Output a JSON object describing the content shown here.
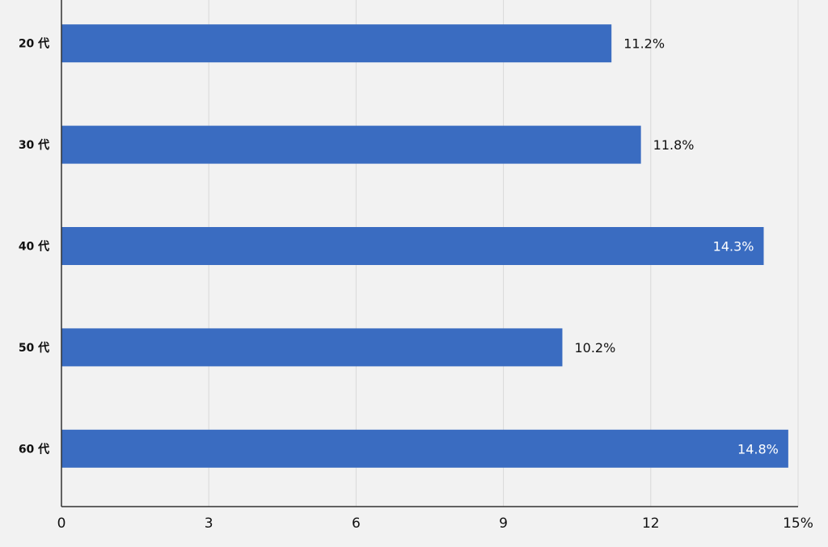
{
  "chart_data": {
    "type": "bar",
    "orientation": "horizontal",
    "categories": [
      "20 代",
      "30 代",
      "40 代",
      "50 代",
      "60 代"
    ],
    "values": [
      11.2,
      11.8,
      14.3,
      10.2,
      14.8
    ],
    "data_labels": [
      "11.2%",
      "11.8%",
      "14.3%",
      "10.2%",
      "14.8%"
    ],
    "x_ticks": [
      "0",
      "3",
      "6",
      "9",
      "12",
      "15%"
    ],
    "x_tick_values": [
      0,
      3,
      6,
      9,
      12,
      15
    ],
    "xlim": [
      0,
      15
    ],
    "grid": true,
    "legend": "none",
    "title": "",
    "xlabel": "",
    "ylabel": "",
    "colors": {
      "bar": "#3a6cc1",
      "grid": "#d9d9d9",
      "axis": "#333333",
      "background": "#f2f2f2",
      "label_dark": "#111111",
      "label_light": "#ffffff"
    }
  }
}
